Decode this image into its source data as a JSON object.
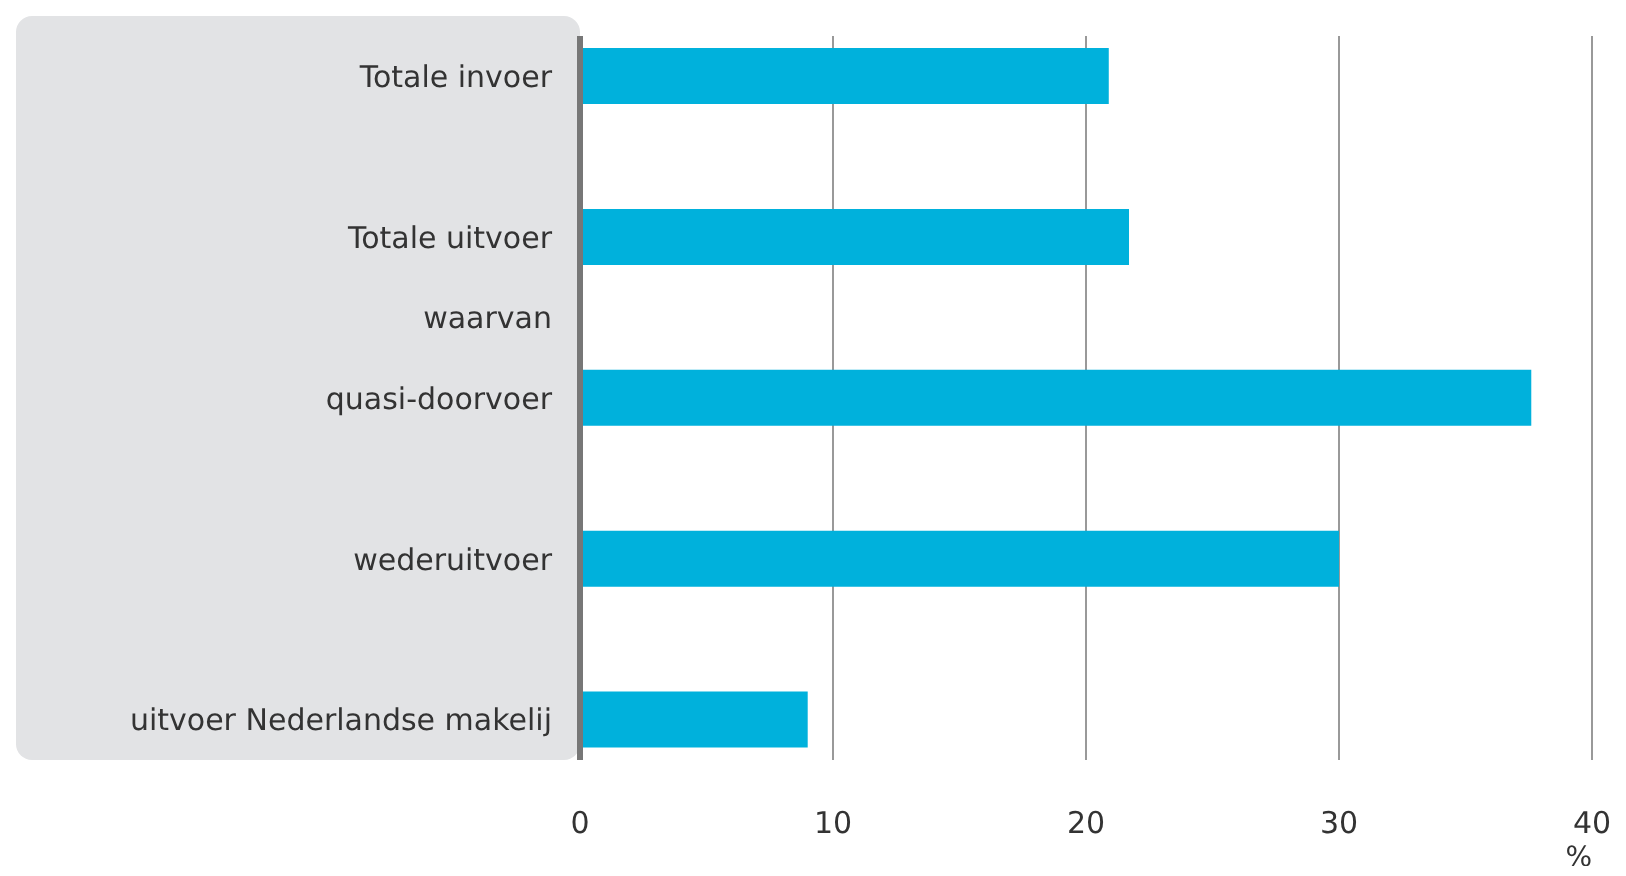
{
  "chart_data": {
    "type": "bar",
    "orientation": "horizontal",
    "categories": [
      "Totale invoer",
      null,
      "Totale uitvoer",
      "waarvan",
      "quasi-doorvoer",
      null,
      "wederuitvoer",
      null,
      "uitvoer Nederlandse makelij"
    ],
    "values": [
      20.9,
      null,
      21.7,
      null,
      37.6,
      null,
      30.0,
      null,
      9.0
    ],
    "color": "#00b1dc",
    "xlabel": "%",
    "xlim": [
      0,
      40
    ],
    "xticks": [
      0,
      10,
      20,
      30,
      40
    ],
    "grid": "x"
  }
}
